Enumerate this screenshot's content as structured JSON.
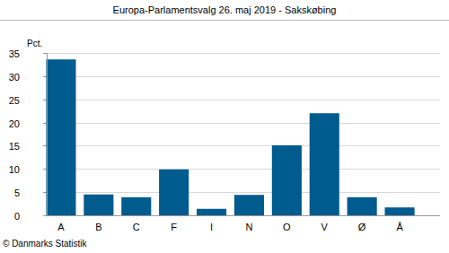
{
  "chart_data": {
    "type": "bar",
    "title": "Europa-Parlamentsvalg 26. maj 2019 - Sakskøbing",
    "y_label": "Pct.",
    "source": "© Danmarks Statistik",
    "categories": [
      "A",
      "B",
      "C",
      "F",
      "I",
      "N",
      "O",
      "V",
      "Ø",
      "Å"
    ],
    "values": [
      33.6,
      4.5,
      3.9,
      9.9,
      1.4,
      4.4,
      15.1,
      22.0,
      3.9,
      1.7
    ],
    "color": "#005b8f",
    "ylim": [
      0,
      35
    ],
    "yticks": [
      0,
      5,
      10,
      15,
      20,
      25,
      30,
      35
    ],
    "grid": true
  }
}
